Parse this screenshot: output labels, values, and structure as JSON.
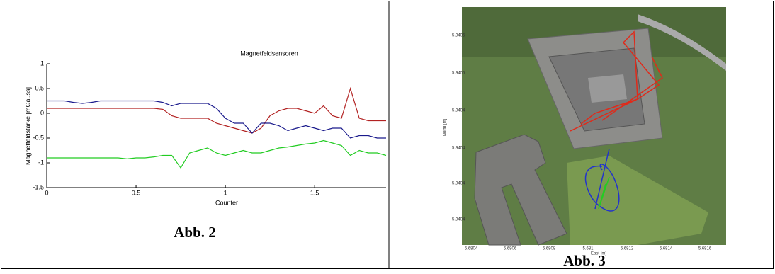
{
  "chart_data": {
    "type": "line",
    "title": "Magnetfeldsensoren",
    "xlabel": "Counter",
    "ylabel": "Magnetfeldstärke [mGauss]",
    "x": [
      0,
      0.05,
      0.1,
      0.15,
      0.2,
      0.25,
      0.3,
      0.35,
      0.4,
      0.45,
      0.5,
      0.55,
      0.6,
      0.65,
      0.7,
      0.75,
      0.8,
      0.85,
      0.9,
      0.95,
      1.0,
      1.05,
      1.1,
      1.15,
      1.2,
      1.25,
      1.3,
      1.35,
      1.4,
      1.45,
      1.5,
      1.55,
      1.6,
      1.65,
      1.7,
      1.75,
      1.8,
      1.85,
      1.9
    ],
    "series": [
      {
        "color": "#b22222",
        "values": [
          0.1,
          0.1,
          0.1,
          0.1,
          0.1,
          0.1,
          0.1,
          0.1,
          0.1,
          0.1,
          0.1,
          0.1,
          0.1,
          0.08,
          -0.05,
          -0.1,
          -0.1,
          -0.1,
          -0.1,
          -0.2,
          -0.25,
          -0.3,
          -0.35,
          -0.4,
          -0.3,
          -0.05,
          0.05,
          0.1,
          0.1,
          0.05,
          0,
          0.15,
          -0.05,
          -0.1,
          0.5,
          -0.1,
          -0.15,
          -0.15,
          -0.15
        ]
      },
      {
        "color": "#1a1a8c",
        "values": [
          0.25,
          0.25,
          0.25,
          0.22,
          0.2,
          0.22,
          0.25,
          0.25,
          0.25,
          0.25,
          0.25,
          0.25,
          0.25,
          0.22,
          0.15,
          0.2,
          0.2,
          0.2,
          0.2,
          0.1,
          -0.1,
          -0.2,
          -0.2,
          -0.4,
          -0.2,
          -0.2,
          -0.25,
          -0.35,
          -0.3,
          -0.25,
          -0.3,
          -0.35,
          -0.3,
          -0.3,
          -0.5,
          -0.45,
          -0.45,
          -0.5,
          -0.5
        ]
      },
      {
        "color": "#22cc22",
        "values": [
          -0.9,
          -0.9,
          -0.9,
          -0.9,
          -0.9,
          -0.9,
          -0.9,
          -0.9,
          -0.9,
          -0.92,
          -0.9,
          -0.9,
          -0.88,
          -0.85,
          -0.85,
          -1.1,
          -0.8,
          -0.75,
          -0.7,
          -0.8,
          -0.85,
          -0.8,
          -0.75,
          -0.8,
          -0.8,
          -0.75,
          -0.7,
          -0.68,
          -0.65,
          -0.62,
          -0.6,
          -0.55,
          -0.6,
          -0.65,
          -0.85,
          -0.75,
          -0.8,
          -0.8,
          -0.85
        ]
      }
    ],
    "xlim": [
      0,
      1.9
    ],
    "xticks": [
      0,
      0.5,
      1,
      1.5
    ],
    "ylim": [
      -1.5,
      1
    ],
    "yticks": [
      -1.5,
      -1,
      -0.5,
      0,
      0.5,
      1
    ]
  },
  "captions": [
    "Abb. 2",
    "Abb. 3"
  ],
  "map": {
    "ylabel": "North [m]",
    "xlabel": "East [m]",
    "yticks": [
      "5.9405",
      "5.9405",
      "5.9404",
      "5.9404",
      "5.9404",
      "5.9404"
    ],
    "xticks": [
      "5.6804",
      "5.6806",
      "5.6808",
      "5.681",
      "5.6812",
      "5.6814",
      "5.6816"
    ]
  }
}
